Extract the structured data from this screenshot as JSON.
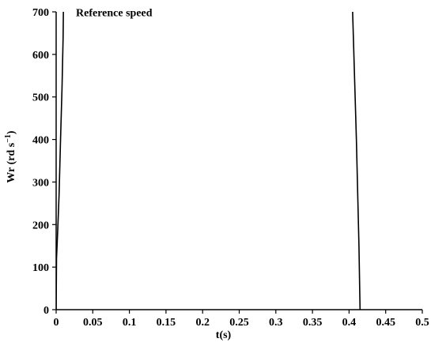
{
  "chart_data": {
    "type": "line",
    "title": "",
    "xlabel": "t(s)",
    "ylabel": "Wr (rd s",
    "ylabel_superscript": "−1",
    "ylabel_close": ")",
    "xlim": [
      0,
      0.5
    ],
    "ylim": [
      0,
      700
    ],
    "xticks": [
      0,
      0.05,
      0.1,
      0.15,
      0.2,
      0.25,
      0.3,
      0.35,
      0.4,
      0.45,
      0.5
    ],
    "xtick_labels": [
      "0",
      "0.05",
      "0.1",
      "0.15",
      "0.2",
      "0.25",
      "0.3",
      "0.35",
      "0.4",
      "0.45",
      "0.5"
    ],
    "yticks": [
      0,
      100,
      200,
      300,
      400,
      500,
      600,
      700
    ],
    "ytick_labels": [
      "0",
      "100",
      "200",
      "300",
      "400",
      "500",
      "600",
      "700"
    ],
    "grid": false,
    "annotations": [
      {
        "text": "Reference speed",
        "x": 0.027,
        "y": 690
      }
    ],
    "series": [
      {
        "color": "#000000",
        "x": [
          0,
          0.0005,
          0.002,
          0.004,
          0.006,
          0.008,
          0.0095,
          0.01
        ],
        "y": [
          0,
          120,
          180,
          270,
          400,
          520,
          640,
          720
        ]
      },
      {
        "color": "#000000",
        "x": [
          0.4045,
          0.41,
          0.4135,
          0.415
        ],
        "y": [
          720,
          400,
          150,
          0
        ]
      }
    ]
  }
}
